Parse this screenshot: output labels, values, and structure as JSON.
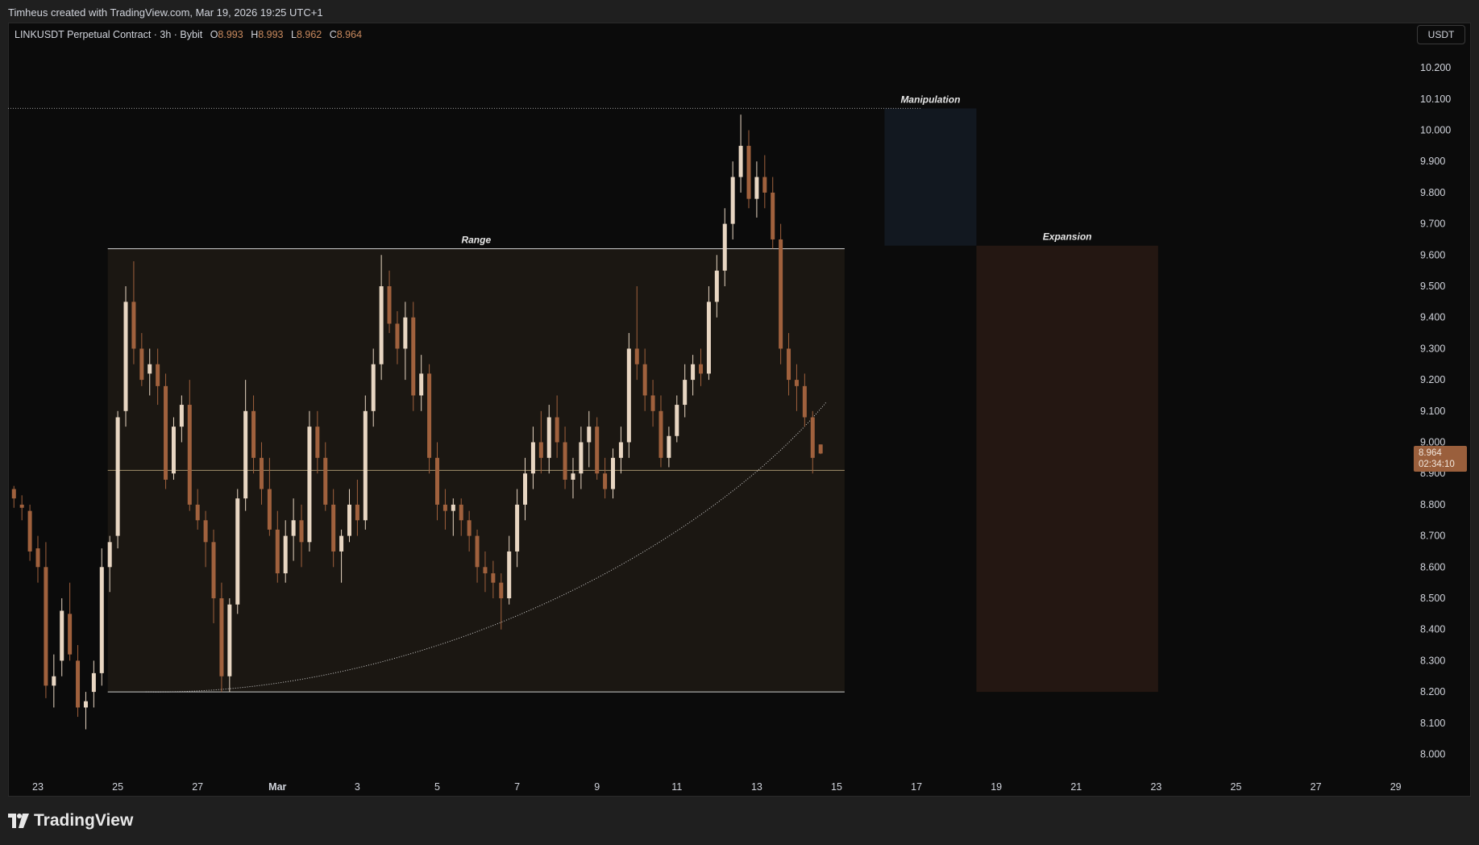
{
  "attribution": "Timheus created with TradingView.com, Mar 19, 2026 19:25 UTC+1",
  "legend": {
    "symbol": "LINKUSDT Perpetual Contract · 3h · Bybit",
    "o_label": "O",
    "o_value": "8.993",
    "h_label": "H",
    "h_value": "8.993",
    "l_label": "L",
    "l_value": "8.962",
    "c_label": "C",
    "c_value": "8.964"
  },
  "currency_button": "USDT",
  "price_tag": {
    "price": "8.964",
    "countdown": "02:34:10"
  },
  "logo_text": "TradingView",
  "colors": {
    "background": "#0b0b0b",
    "frame": "#1f1f1f",
    "up_candle": "#e8d6c2",
    "down_candle": "#a0613d",
    "text": "#d1d4dc",
    "range_box": "#1b1712",
    "manipulation_box": "#121820",
    "expansion_box": "#241712"
  },
  "chart_data": {
    "type": "candlestick",
    "symbol": "LINKUSDT Perpetual Contract",
    "interval": "3h",
    "exchange": "Bybit",
    "ohlc_last": {
      "open": 8.993,
      "high": 8.993,
      "low": 8.962,
      "close": 8.964
    },
    "y_axis": {
      "unit": "USDT",
      "ylim": [
        7.95,
        10.25
      ],
      "ticks": [
        "10.200",
        "10.100",
        "10.000",
        "9.900",
        "9.800",
        "9.700",
        "9.600",
        "9.500",
        "9.400",
        "9.300",
        "9.200",
        "9.100",
        "9.000",
        "8.900",
        "8.800",
        "8.700",
        "8.600",
        "8.500",
        "8.400",
        "8.300",
        "8.200",
        "8.100",
        "8.000"
      ]
    },
    "x_axis": {
      "ticks": [
        "23",
        "25",
        "27",
        "Mar",
        "3",
        "5",
        "7",
        "9",
        "11",
        "13",
        "15",
        "17",
        "19",
        "21",
        "23",
        "25",
        "27",
        "29"
      ],
      "tick_day_index": [
        0,
        2,
        4,
        6,
        8,
        10,
        12,
        14,
        16,
        18,
        20,
        22,
        24,
        26,
        28,
        30,
        32,
        34
      ],
      "xlim_days": [
        -0.75,
        34.5
      ]
    },
    "grid": false,
    "annotations": [
      {
        "label": "Range",
        "type": "box",
        "x_days": [
          1.75,
          20.2
        ],
        "y": [
          8.2,
          9.62
        ],
        "midline": 8.91
      },
      {
        "label": "Manipulation",
        "type": "box",
        "x_days": [
          21.2,
          23.5
        ],
        "y": [
          9.63,
          10.07
        ]
      },
      {
        "label": "Expansion",
        "type": "box",
        "x_days": [
          23.5,
          28.05
        ],
        "y": [
          8.2,
          9.63
        ]
      }
    ],
    "reference_line": {
      "style": "dotted",
      "price": 10.07
    },
    "curve": {
      "style": "dotted",
      "from": {
        "day": 2.7,
        "price": 8.2
      },
      "to": {
        "day": 19.75,
        "price": 9.13
      }
    },
    "last_price": 8.964,
    "candles_sample": [
      [
        -0.6,
        8.85,
        8.86,
        8.79,
        8.82
      ],
      [
        -0.4,
        8.8,
        8.83,
        8.75,
        8.79
      ],
      [
        -0.2,
        8.78,
        8.8,
        8.62,
        8.65
      ],
      [
        0.0,
        8.66,
        8.7,
        8.55,
        8.6
      ],
      [
        0.2,
        8.6,
        8.68,
        8.18,
        8.22
      ],
      [
        0.4,
        8.22,
        8.32,
        8.15,
        8.25
      ],
      [
        0.6,
        8.3,
        8.5,
        8.25,
        8.46
      ],
      [
        0.8,
        8.45,
        8.55,
        8.3,
        8.32
      ],
      [
        1.0,
        8.3,
        8.35,
        8.12,
        8.15
      ],
      [
        1.2,
        8.15,
        8.2,
        8.08,
        8.17
      ],
      [
        1.4,
        8.2,
        8.3,
        8.15,
        8.26
      ],
      [
        1.6,
        8.26,
        8.66,
        8.22,
        8.6
      ],
      [
        1.8,
        8.6,
        8.7,
        8.52,
        8.68
      ],
      [
        2.0,
        8.7,
        9.1,
        8.66,
        9.08
      ],
      [
        2.2,
        9.1,
        9.5,
        9.05,
        9.45
      ],
      [
        2.4,
        9.45,
        9.58,
        9.25,
        9.3
      ],
      [
        2.6,
        9.3,
        9.35,
        9.18,
        9.2
      ],
      [
        2.8,
        9.22,
        9.3,
        9.15,
        9.25
      ],
      [
        3.0,
        9.25,
        9.3,
        9.12,
        9.18
      ],
      [
        3.2,
        9.18,
        9.22,
        8.85,
        8.88
      ],
      [
        3.4,
        8.9,
        9.08,
        8.88,
        9.05
      ],
      [
        3.6,
        9.05,
        9.15,
        9.0,
        9.12
      ],
      [
        3.8,
        9.12,
        9.2,
        8.78,
        8.8
      ],
      [
        4.0,
        8.8,
        8.85,
        8.72,
        8.75
      ],
      [
        4.2,
        8.75,
        8.78,
        8.6,
        8.68
      ],
      [
        4.4,
        8.68,
        8.72,
        8.42,
        8.5
      ],
      [
        4.6,
        8.5,
        8.55,
        8.2,
        8.25
      ],
      [
        4.8,
        8.25,
        8.5,
        8.2,
        8.48
      ],
      [
        5.0,
        8.48,
        8.85,
        8.45,
        8.82
      ],
      [
        5.2,
        8.82,
        9.2,
        8.78,
        9.1
      ],
      [
        5.4,
        9.1,
        9.15,
        8.9,
        8.95
      ],
      [
        5.6,
        8.95,
        9.0,
        8.8,
        8.85
      ],
      [
        5.8,
        8.85,
        8.95,
        8.7,
        8.72
      ],
      [
        6.0,
        8.72,
        8.78,
        8.55,
        8.58
      ],
      [
        6.2,
        8.58,
        8.75,
        8.55,
        8.7
      ],
      [
        6.4,
        8.7,
        8.82,
        8.62,
        8.75
      ],
      [
        6.6,
        8.75,
        8.8,
        8.6,
        8.68
      ],
      [
        6.8,
        8.68,
        9.1,
        8.65,
        9.05
      ],
      [
        7.0,
        9.05,
        9.1,
        8.9,
        8.95
      ],
      [
        7.2,
        8.95,
        9.0,
        8.78,
        8.8
      ],
      [
        7.4,
        8.8,
        8.85,
        8.6,
        8.65
      ],
      [
        7.6,
        8.65,
        8.72,
        8.55,
        8.7
      ],
      [
        7.8,
        8.7,
        8.85,
        8.68,
        8.8
      ],
      [
        8.0,
        8.8,
        8.88,
        8.7,
        8.75
      ],
      [
        8.2,
        8.75,
        9.15,
        8.72,
        9.1
      ],
      [
        8.4,
        9.1,
        9.3,
        9.05,
        9.25
      ],
      [
        8.6,
        9.25,
        9.6,
        9.2,
        9.5
      ],
      [
        8.8,
        9.5,
        9.55,
        9.35,
        9.38
      ],
      [
        9.0,
        9.38,
        9.42,
        9.25,
        9.3
      ],
      [
        9.2,
        9.3,
        9.45,
        9.2,
        9.4
      ],
      [
        9.4,
        9.4,
        9.45,
        9.1,
        9.15
      ],
      [
        9.6,
        9.15,
        9.28,
        9.1,
        9.22
      ],
      [
        9.8,
        9.22,
        9.25,
        8.9,
        8.95
      ],
      [
        10.0,
        8.95,
        9.0,
        8.75,
        8.8
      ],
      [
        10.2,
        8.8,
        8.85,
        8.72,
        8.78
      ],
      [
        10.4,
        8.78,
        8.82,
        8.7,
        8.8
      ],
      [
        10.6,
        8.8,
        8.82,
        8.7,
        8.75
      ],
      [
        10.8,
        8.75,
        8.78,
        8.65,
        8.7
      ],
      [
        11.0,
        8.7,
        8.72,
        8.55,
        8.6
      ],
      [
        11.2,
        8.6,
        8.65,
        8.52,
        8.58
      ],
      [
        11.4,
        8.58,
        8.62,
        8.5,
        8.55
      ],
      [
        11.6,
        8.55,
        8.58,
        8.4,
        8.5
      ],
      [
        11.8,
        8.5,
        8.7,
        8.48,
        8.65
      ],
      [
        12.0,
        8.65,
        8.85,
        8.6,
        8.8
      ],
      [
        12.2,
        8.8,
        8.95,
        8.75,
        8.9
      ],
      [
        12.4,
        8.9,
        9.05,
        8.85,
        9.0
      ],
      [
        12.6,
        9.0,
        9.1,
        8.9,
        8.95
      ],
      [
        12.8,
        8.95,
        9.12,
        8.9,
        9.08
      ],
      [
        13.0,
        9.08,
        9.15,
        8.95,
        9.0
      ],
      [
        13.2,
        9.0,
        9.05,
        8.85,
        8.88
      ],
      [
        13.4,
        8.88,
        8.95,
        8.82,
        8.9
      ],
      [
        13.6,
        8.9,
        9.05,
        8.85,
        9.0
      ],
      [
        13.8,
        9.0,
        9.1,
        8.92,
        9.05
      ],
      [
        14.0,
        9.05,
        9.08,
        8.88,
        8.9
      ],
      [
        14.2,
        8.9,
        8.95,
        8.82,
        8.85
      ],
      [
        14.4,
        8.85,
        8.98,
        8.82,
        8.95
      ],
      [
        14.6,
        8.95,
        9.05,
        8.9,
        9.0
      ],
      [
        14.8,
        9.0,
        9.35,
        8.95,
        9.3
      ],
      [
        15.0,
        9.3,
        9.5,
        9.2,
        9.25
      ],
      [
        15.2,
        9.25,
        9.3,
        9.1,
        9.15
      ],
      [
        15.4,
        9.15,
        9.2,
        9.05,
        9.1
      ],
      [
        15.6,
        9.1,
        9.15,
        8.92,
        8.95
      ],
      [
        15.8,
        8.95,
        9.05,
        8.92,
        9.02
      ],
      [
        16.0,
        9.02,
        9.15,
        9.0,
        9.12
      ],
      [
        16.2,
        9.12,
        9.25,
        9.08,
        9.2
      ],
      [
        16.4,
        9.2,
        9.28,
        9.15,
        9.25
      ],
      [
        16.6,
        9.25,
        9.3,
        9.18,
        9.22
      ],
      [
        16.8,
        9.22,
        9.5,
        9.2,
        9.45
      ],
      [
        17.0,
        9.45,
        9.6,
        9.4,
        9.55
      ],
      [
        17.2,
        9.55,
        9.75,
        9.5,
        9.7
      ],
      [
        17.4,
        9.7,
        9.9,
        9.65,
        9.85
      ],
      [
        17.6,
        9.85,
        10.05,
        9.8,
        9.95
      ],
      [
        17.8,
        9.95,
        10.0,
        9.75,
        9.78
      ],
      [
        18.0,
        9.78,
        9.9,
        9.72,
        9.85
      ],
      [
        18.2,
        9.85,
        9.92,
        9.75,
        9.8
      ],
      [
        18.4,
        9.8,
        9.85,
        9.62,
        9.65
      ],
      [
        18.6,
        9.65,
        9.7,
        9.25,
        9.3
      ],
      [
        18.8,
        9.3,
        9.35,
        9.15,
        9.2
      ],
      [
        19.0,
        9.2,
        9.25,
        9.1,
        9.18
      ],
      [
        19.2,
        9.18,
        9.22,
        9.05,
        9.08
      ],
      [
        19.4,
        9.08,
        9.1,
        8.9,
        8.95
      ],
      [
        19.6,
        8.993,
        8.993,
        8.962,
        8.964
      ]
    ]
  }
}
